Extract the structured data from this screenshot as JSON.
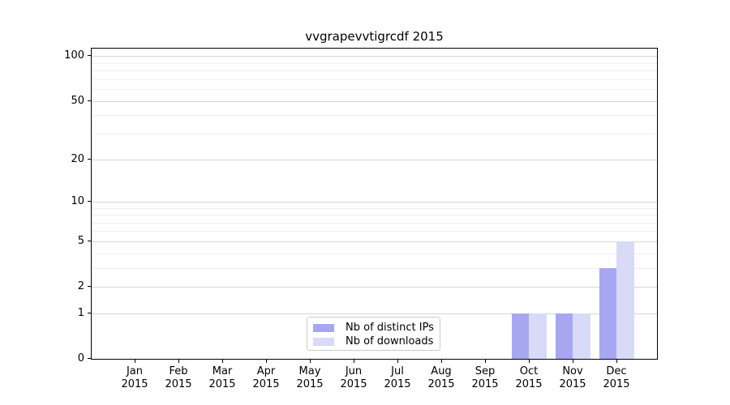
{
  "chart_data": {
    "type": "bar",
    "title": "vvgrapevvtigrcdf 2015",
    "categories": [
      "Jan 2015",
      "Feb 2015",
      "Mar 2015",
      "Apr 2015",
      "May 2015",
      "Jun 2015",
      "Jul 2015",
      "Aug 2015",
      "Sep 2015",
      "Oct 2015",
      "Nov 2015",
      "Dec 2015"
    ],
    "series": [
      {
        "name": "Nb of distinct IPs",
        "color": "#a7a7f1",
        "values": [
          0,
          0,
          0,
          0,
          0,
          0,
          0,
          0,
          0,
          1,
          1,
          3
        ]
      },
      {
        "name": "Nb of downloads",
        "color": "#d9d9f8",
        "values": [
          0,
          0,
          0,
          0,
          0,
          0,
          0,
          0,
          0,
          1,
          1,
          5
        ]
      }
    ],
    "xlabel": "",
    "ylabel": "",
    "yscale": "log1p",
    "y_major_ticks": [
      0,
      1,
      2,
      5,
      10,
      20,
      50,
      100
    ],
    "y_minor_gridlines": [
      3,
      4,
      6,
      7,
      8,
      9,
      30,
      40,
      60,
      70,
      80,
      90
    ],
    "ylim": [
      0,
      113
    ],
    "grid": "horizontal-major-and-minor",
    "legend_position": "lower center"
  },
  "colors": {
    "grid_major": "#d6d6d6",
    "grid_minor": "#efefef",
    "spine": "#000000",
    "legend_border": "#cccccc"
  }
}
